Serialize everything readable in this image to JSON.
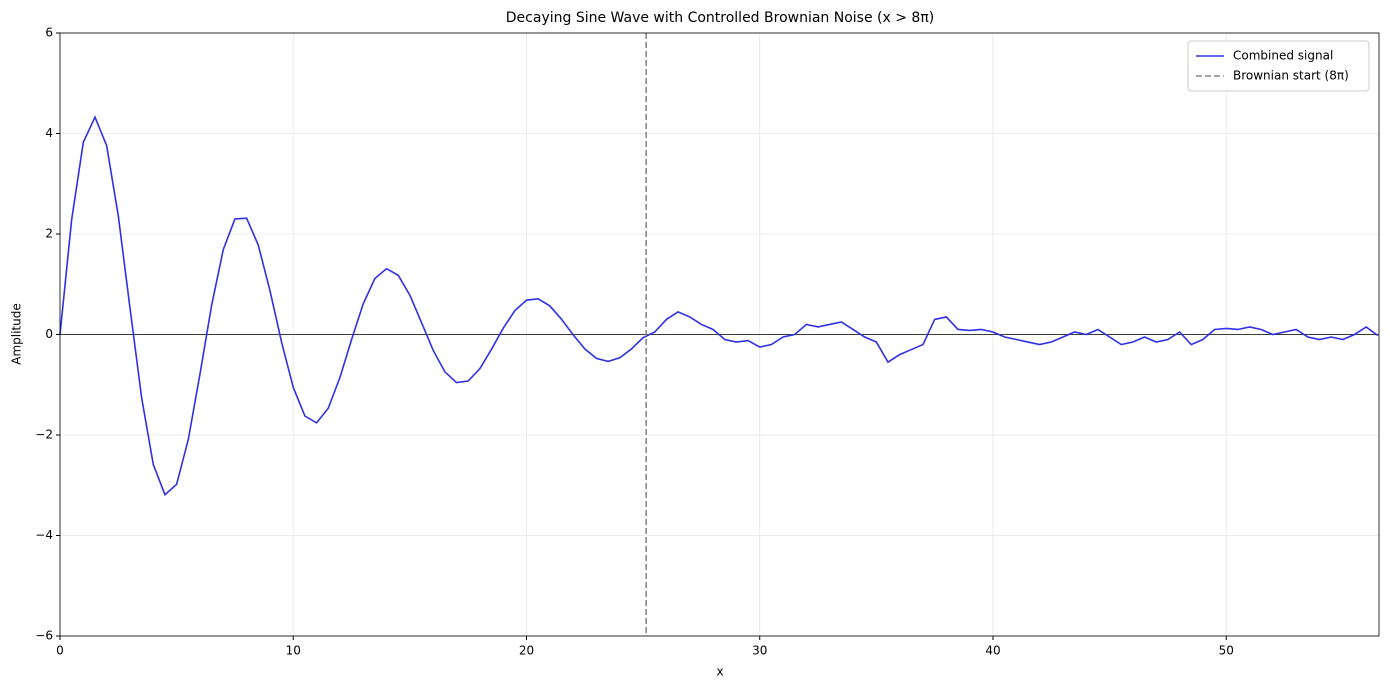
{
  "chart_data": {
    "type": "line",
    "title": "Decaying Sine Wave with Controlled Brownian Noise (x > 8π)",
    "xlabel": "x",
    "ylabel": "Amplitude",
    "x": [
      0,
      0.5,
      1,
      1.5,
      2,
      2.5,
      3,
      3.5,
      4,
      4.5,
      5,
      5.5,
      6,
      6.5,
      7,
      7.5,
      8,
      8.5,
      9,
      9.5,
      10,
      10.5,
      11,
      11.5,
      12,
      12.5,
      13,
      13.5,
      14,
      14.5,
      15,
      15.5,
      16,
      16.5,
      17,
      17.5,
      18,
      18.5,
      19,
      19.5,
      20,
      20.5,
      21,
      21.5,
      22,
      22.5,
      23,
      23.5,
      24,
      24.5,
      25,
      25.5,
      26,
      26.5,
      27,
      27.5,
      28,
      28.5,
      29,
      29.5,
      30,
      30.5,
      31,
      31.5,
      32,
      32.5,
      33,
      33.5,
      34,
      34.5,
      35,
      35.5,
      36,
      36.5,
      37,
      37.5,
      38,
      38.5,
      39,
      39.5,
      40,
      40.5,
      41,
      41.5,
      42,
      42.5,
      43,
      43.5,
      44,
      44.5,
      45,
      45.5,
      46,
      46.5,
      47,
      47.5,
      48,
      48.5,
      49,
      49.5,
      50,
      50.5,
      51,
      51.5,
      52,
      52.5,
      53,
      53.5,
      54,
      54.5,
      55,
      55.5,
      56,
      56.5
    ],
    "series": [
      {
        "name": "Combined signal",
        "color": "#3030e8",
        "values": [
          0,
          2.286,
          3.826,
          4.325,
          3.76,
          2.36,
          0.531,
          -1.258,
          -2.588,
          -3.188,
          -2.982,
          -2.092,
          -0.79,
          0.58,
          1.689,
          2.3,
          2.314,
          1.781,
          0.876,
          -0.153,
          -1.052,
          -1.622,
          -1.759,
          -1.468,
          -0.858,
          -0.101,
          0.611,
          1.114,
          1.31,
          1.179,
          0.782,
          0.237,
          -0.315,
          -0.742,
          -0.956,
          -0.926,
          -0.679,
          -0.295,
          0.123,
          0.475,
          0.683,
          0.711,
          0.569,
          0.305,
          -0.006,
          -0.287,
          -0.476,
          -0.535,
          -0.463,
          -0.288,
          -0.062,
          0.05,
          0.3,
          0.45,
          0.35,
          0.2,
          0.1,
          -0.1,
          -0.15,
          -0.12,
          -0.25,
          -0.2,
          -0.05,
          0,
          0.2,
          0.15,
          0.2,
          0.25,
          0.1,
          -0.05,
          -0.15,
          -0.55,
          -0.4,
          -0.3,
          -0.2,
          0.3,
          0.35,
          0.1,
          0.08,
          0.1,
          0.05,
          -0.05,
          -0.1,
          -0.15,
          -0.2,
          -0.15,
          -0.05,
          0.05,
          0,
          0.1,
          -0.05,
          -0.2,
          -0.15,
          -0.05,
          -0.15,
          -0.1,
          0.05,
          -0.2,
          -0.1,
          0.1,
          0.12,
          0.1,
          0.15,
          0.1,
          0,
          0.05,
          0.1,
          -0.05,
          -0.1,
          -0.05,
          -0.1,
          0,
          0.15,
          -0.02
        ]
      }
    ],
    "vline": {
      "name": "Brownian start (8π)",
      "x": 25.13,
      "color": "#888888"
    },
    "hline": 0,
    "xlim": [
      0,
      56.55
    ],
    "ylim": [
      -6,
      6
    ],
    "xticks": [
      0,
      10,
      20,
      30,
      40,
      50
    ],
    "yticks": [
      {
        "value": -6,
        "label": "−6"
      },
      {
        "value": -4,
        "label": "−4"
      },
      {
        "value": -2,
        "label": "−2"
      },
      0,
      2,
      4,
      6
    ],
    "grid": true,
    "legend": "upper right"
  }
}
